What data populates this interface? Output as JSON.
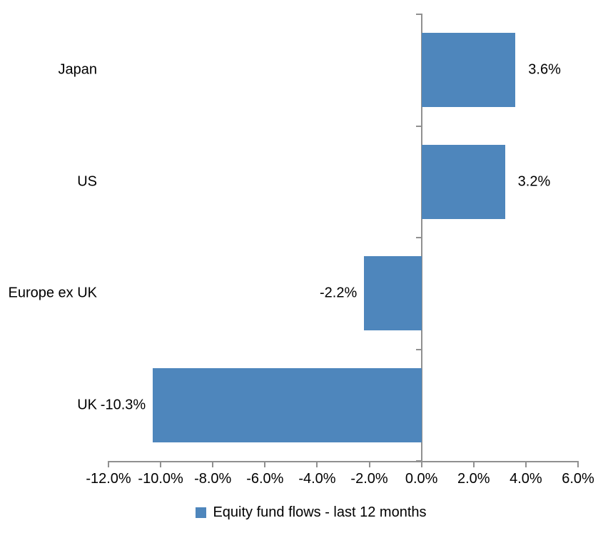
{
  "chart_data": {
    "type": "bar",
    "orientation": "horizontal",
    "title": "",
    "categories": [
      "Japan",
      "US",
      "Europe ex UK",
      "UK"
    ],
    "series": [
      {
        "name": "Equity fund flows - last 12 months",
        "values": [
          3.6,
          3.2,
          -2.2,
          -10.3
        ]
      }
    ],
    "data_labels": [
      "3.6%",
      "3.2%",
      "-2.2%",
      "-10.3%"
    ],
    "xlim": [
      -12,
      6
    ],
    "x_tick_step": 2,
    "x_tick_labels": [
      "-12.0%",
      "-10.0%",
      "-8.0%",
      "-6.0%",
      "-4.0%",
      "-2.0%",
      "0.0%",
      "2.0%",
      "4.0%",
      "6.0%"
    ],
    "grid": false,
    "legend_position": "bottom",
    "legend_entries": [
      "Equity fund flows - last 12 months"
    ],
    "colors": {
      "bar": "#4E86BC",
      "axis": "#909090",
      "text": "#000000",
      "background": "#FFFFFF"
    }
  }
}
